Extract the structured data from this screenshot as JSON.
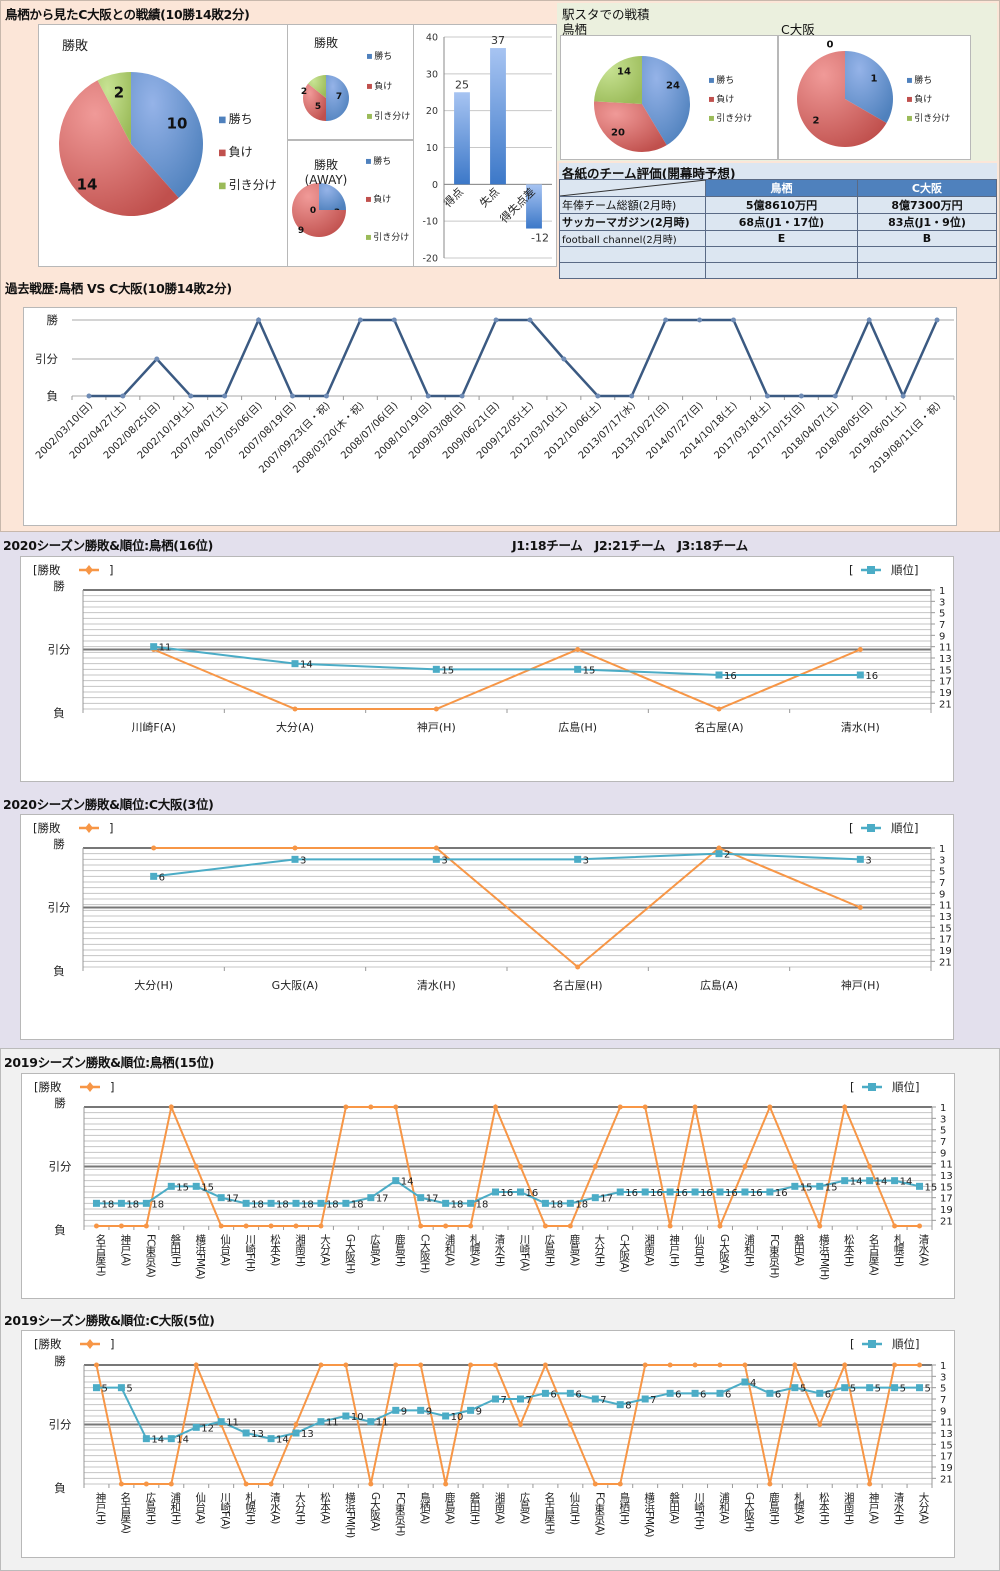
{
  "top": {
    "title": "鳥栖から見たC大阪との戦績(10勝14敗2分)",
    "legend_labels": [
      "勝ち",
      "負け",
      "引き分け"
    ],
    "colors": {
      "win": "#4f81bd",
      "loss": "#c0504d",
      "draw": "#9bbb59",
      "win_light": "#95b3e8",
      "loss_light": "#f09a98",
      "draw_light": "#c8e394"
    }
  },
  "eki": {
    "title": "駅スタでの戦積",
    "tosu_label": "鳥栖",
    "cosaka_label": "C大阪"
  },
  "eval": {
    "title": "各紙のチーム評価(開幕時予想)",
    "columns": [
      "",
      "鳥栖",
      "C大阪"
    ],
    "rows": [
      [
        "年俸チーム総額(2月時)",
        "5億8610万円",
        "8億7300万円"
      ],
      [
        "サッカーマガジン(2月時)",
        "68点(J1・17位)",
        "83点(J1・9位)"
      ],
      [
        "football channel(2月時)",
        "E",
        "B"
      ],
      [
        "",
        "",
        ""
      ],
      [
        "",
        "",
        ""
      ]
    ]
  },
  "history": {
    "title": "過去戦歴:鳥栖 VS C大阪(10勝14敗2分)"
  },
  "sec2020": {
    "title_tosu": "2020シーズン勝敗&順位:鳥栖(16位)",
    "teams_note": "J1:18チーム　J2:21チーム　J3:18チーム",
    "title_cosaka": "2020シーズン勝敗&順位:C大阪(3位)"
  },
  "sec2019": {
    "title_tosu": "2019シーズン勝敗&順位:鳥栖(15位)",
    "title_cosaka": "2019シーズン勝敗&順位:C大阪(5位)"
  },
  "common": {
    "legend_result": "[勝敗",
    "legend_result_close": "]",
    "legend_rank_open": "[",
    "legend_rank": "順位]",
    "result_axis": [
      "勝",
      "引分",
      "負"
    ],
    "rank_ticks": [
      1,
      3,
      5,
      7,
      9,
      11,
      13,
      15,
      17,
      19,
      21
    ],
    "result_color": "#f79646",
    "rank_color": "#4bacc6",
    "history_color": "#3b5a82"
  },
  "chart_data": [
    {
      "id": "overall",
      "type": "pie",
      "title": "勝敗",
      "labels": [
        "勝ち",
        "負け",
        "引き分け"
      ],
      "values": [
        10,
        14,
        2
      ]
    },
    {
      "id": "home",
      "type": "pie",
      "title": "勝敗",
      "labels": [
        "勝ち",
        "負け",
        "引き分け"
      ],
      "values": [
        7,
        5,
        2
      ]
    },
    {
      "id": "away",
      "type": "pie",
      "title": "勝敗(AWAY)",
      "labels": [
        "勝ち",
        "負け",
        "引き分け"
      ],
      "values": [
        3,
        9,
        0
      ]
    },
    {
      "id": "goals",
      "type": "bar",
      "categories": [
        "得点",
        "失点",
        "得失点差"
      ],
      "values": [
        25,
        37,
        -12
      ],
      "ylim": [
        -20,
        40
      ],
      "yticks": [
        -20,
        -10,
        0,
        10,
        20,
        30,
        40
      ]
    },
    {
      "id": "eki_tosu",
      "type": "pie",
      "title": "鳥栖",
      "labels": [
        "勝ち",
        "負け",
        "引き分け"
      ],
      "values": [
        24,
        20,
        14
      ]
    },
    {
      "id": "eki_cosaka",
      "type": "pie",
      "title": "C大阪",
      "labels": [
        "勝ち",
        "負け",
        "引き分け"
      ],
      "values": [
        1,
        2,
        0
      ]
    },
    {
      "id": "history",
      "type": "line",
      "title": "過去戦歴:鳥栖 VS C大阪(10勝14敗2分)",
      "y_categories": [
        "負",
        "引分",
        "勝"
      ],
      "x": [
        "2002/03/10(日)",
        "2002/04/27(土)",
        "2002/08/25(日)",
        "2002/10/19(土)",
        "2007/04/07(土)",
        "2007/05/06(日)",
        "2007/08/19(日)",
        "2007/09/23(日・祝)",
        "2008/03/20(木・祝)",
        "2008/07/06(日)",
        "2008/10/19(日)",
        "2009/03/08(日)",
        "2009/06/21(日)",
        "2009/12/05(土)",
        "2012/03/10(土)",
        "2012/10/06(土)",
        "2013/07/17(水)",
        "2013/10/27(日)",
        "2014/07/27(日)",
        "2014/10/18(土)",
        "2017/03/18(土)",
        "2017/10/15(日)",
        "2018/04/07(土)",
        "2018/08/05(日)",
        "2019/06/01(土)",
        "2019/08/11(日・祝)"
      ],
      "results": [
        "L",
        "L",
        "D",
        "L",
        "L",
        "W",
        "L",
        "L",
        "W",
        "W",
        "L",
        "L",
        "W",
        "W",
        "D",
        "L",
        "L",
        "W",
        "W",
        "W",
        "L",
        "L",
        "L",
        "W",
        "L",
        "W"
      ]
    },
    {
      "id": "tosu2020",
      "type": "line",
      "title": "2020シーズン勝敗&順位:鳥栖(16位)",
      "x": [
        "川崎F(A)",
        "大分(A)",
        "神戸(H)",
        "広島(H)",
        "名古屋(A)",
        "清水(H)"
      ],
      "results": [
        "D",
        "L",
        "L",
        "D",
        "L",
        "D"
      ],
      "ranks": [
        11,
        14,
        15,
        15,
        16,
        16
      ],
      "rank_range": [
        1,
        22
      ]
    },
    {
      "id": "cosaka2020",
      "type": "line",
      "title": "2020シーズン勝敗&順位:C大阪(3位)",
      "x": [
        "大分(H)",
        "G大阪(A)",
        "清水(H)",
        "名古屋(H)",
        "広島(A)",
        "神戸(H)"
      ],
      "results": [
        "W",
        "W",
        "W",
        "L",
        "W",
        "D"
      ],
      "ranks": [
        6,
        3,
        3,
        3,
        2,
        3
      ],
      "rank_range": [
        1,
        22
      ]
    },
    {
      "id": "tosu2019",
      "type": "line",
      "title": "2019シーズン勝敗&順位:鳥栖(15位)",
      "x": [
        "名古屋(H)",
        "神戸(A)",
        "FC東京(A)",
        "磐田(H)",
        "横浜FM(A)",
        "仙台(A)",
        "川崎F(H)",
        "松本(A)",
        "湘南(H)",
        "大分(A)",
        "G大阪(H)",
        "広島(A)",
        "鹿島(H)",
        "C大阪(H)",
        "浦和(A)",
        "札幌(A)",
        "清水(H)",
        "川崎F(A)",
        "広島(H)",
        "鹿島(A)",
        "大分(H)",
        "C大阪(A)",
        "湘南(A)",
        "神戸(H)",
        "仙台(H)",
        "G大阪(A)",
        "浦和(H)",
        "FC東京(H)",
        "磐田(A)",
        "横浜FM(H)",
        "松本(H)",
        "名古屋(A)",
        "札幌(H)",
        "清水(A)"
      ],
      "results": [
        "L",
        "L",
        "L",
        "W",
        "D",
        "L",
        "L",
        "L",
        "L",
        "L",
        "W",
        "W",
        "W",
        "L",
        "L",
        "L",
        "W",
        "D",
        "L",
        "L",
        "D",
        "W",
        "W",
        "L",
        "W",
        "L",
        "D",
        "W",
        "D",
        "L",
        "W",
        "D",
        "L",
        "L"
      ],
      "ranks": [
        18,
        18,
        18,
        15,
        15,
        17,
        18,
        18,
        18,
        18,
        18,
        17,
        14,
        17,
        18,
        18,
        16,
        16,
        18,
        18,
        17,
        16,
        16,
        16,
        16,
        16,
        16,
        16,
        15,
        15,
        14,
        14,
        14,
        15
      ],
      "rank_range": [
        1,
        22
      ]
    },
    {
      "id": "cosaka2019",
      "type": "line",
      "title": "2019シーズン勝敗&順位:C大阪(5位)",
      "x": [
        "神戸(H)",
        "名古屋(A)",
        "広島(H)",
        "浦和(H)",
        "仙台(A)",
        "川崎F(A)",
        "札幌(H)",
        "清水(A)",
        "大分(H)",
        "松本(A)",
        "横浜FM(H)",
        "G大阪(A)",
        "FC東京(H)",
        "鳥栖(A)",
        "鹿島(A)",
        "磐田(H)",
        "湘南(A)",
        "広島(A)",
        "名古屋(H)",
        "仙台(H)",
        "FC東京(A)",
        "鳥栖(H)",
        "横浜FM(A)",
        "磐田(A)",
        "川崎F(H)",
        "浦和(A)",
        "G大阪(H)",
        "鹿島(H)",
        "札幌(A)",
        "松本(H)",
        "湘南(H)",
        "神戸(A)",
        "清水(H)",
        "大分(A)"
      ],
      "results": [
        "W",
        "L",
        "L",
        "L",
        "W",
        "D",
        "L",
        "L",
        "D",
        "W",
        "W",
        "L",
        "W",
        "W",
        "L",
        "W",
        "W",
        "D",
        "W",
        "D",
        "L",
        "L",
        "W",
        "W",
        "W",
        "W",
        "W",
        "L",
        "W",
        "D",
        "W",
        "L",
        "W",
        "W"
      ],
      "ranks": [
        5,
        5,
        14,
        14,
        12,
        11,
        13,
        14,
        13,
        11,
        10,
        11,
        9,
        9,
        10,
        9,
        7,
        7,
        6,
        6,
        7,
        8,
        7,
        6,
        6,
        6,
        4,
        6,
        5,
        6,
        5,
        5,
        5,
        5
      ],
      "rank_range": [
        1,
        22
      ]
    }
  ]
}
